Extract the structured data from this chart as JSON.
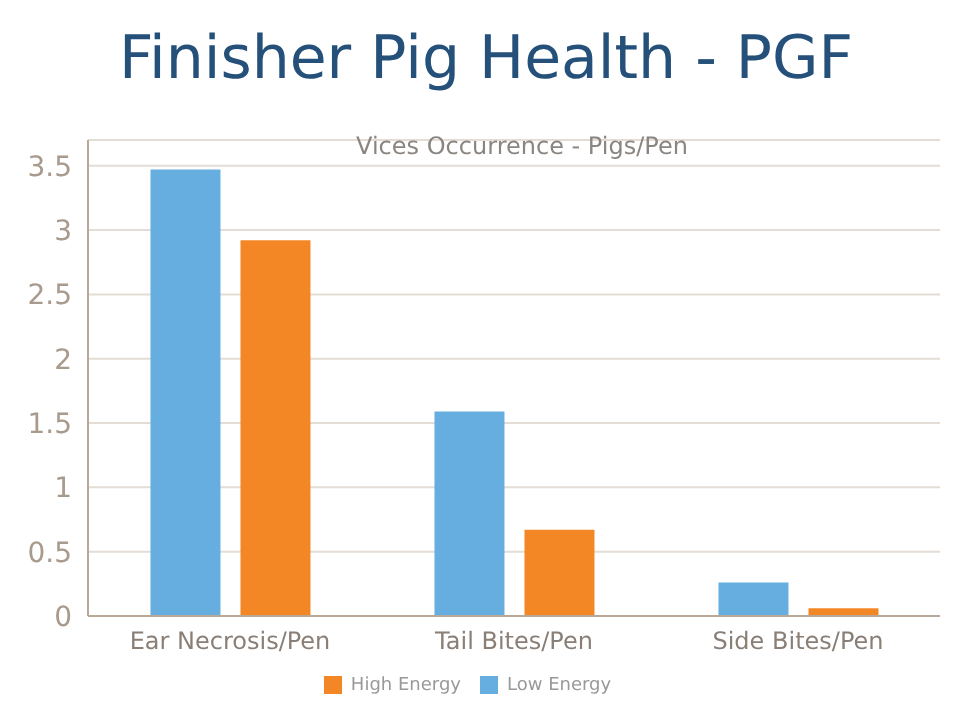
{
  "chart_data": {
    "type": "bar",
    "title": "Finisher Pig Health - PGF",
    "subtitle": "Vices Occurrence - Pigs/Pen",
    "categories": [
      "Ear Necrosis/Pen",
      "Tail Bites/Pen",
      "Side Bites/Pen"
    ],
    "series": [
      {
        "name": "Low Energy",
        "color": "#67aee0",
        "values": [
          3.47,
          1.59,
          0.26
        ]
      },
      {
        "name": "High Energy",
        "color": "#f48725",
        "values": [
          2.92,
          0.67,
          0.06
        ]
      }
    ],
    "ylim": [
      0,
      3.7
    ],
    "yticks": [
      0,
      0.5,
      1,
      1.5,
      2,
      2.5,
      3,
      3.5
    ],
    "grid": "y",
    "legend": "bottom"
  }
}
